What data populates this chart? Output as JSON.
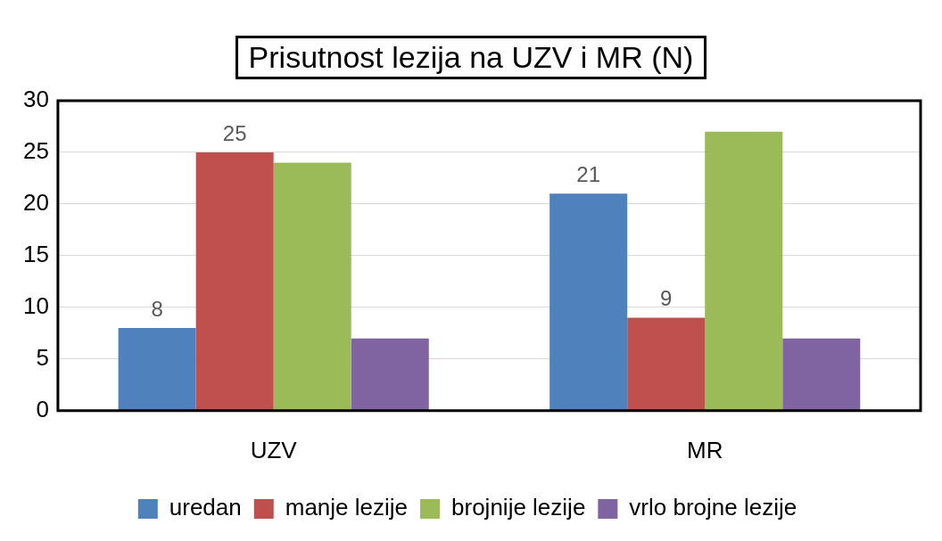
{
  "chart_data": {
    "type": "bar",
    "title": "Prisutnost lezija na UZV i MR (N)",
    "categories": [
      "UZV",
      "MR"
    ],
    "series": [
      {
        "name": "uredan",
        "color": "#4f81bd",
        "values": [
          8,
          21
        ],
        "value_labels": [
          "8",
          "21"
        ]
      },
      {
        "name": "manje lezije",
        "color": "#c0504d",
        "values": [
          25,
          9
        ],
        "value_labels": [
          "25",
          "9"
        ]
      },
      {
        "name": "brojnije lezije",
        "color": "#9bbb59",
        "values": [
          24,
          27
        ]
      },
      {
        "name": "vrlo brojne lezije",
        "color": "#8064a2",
        "values": [
          7,
          7
        ]
      }
    ],
    "ylim": [
      0,
      30
    ],
    "yticks": [
      0,
      5,
      10,
      15,
      20,
      25,
      30
    ],
    "grid": "y",
    "legend": "bottom"
  }
}
